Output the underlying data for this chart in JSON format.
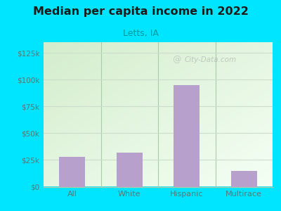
{
  "title": "Median per capita income in 2022",
  "subtitle": "Letts, IA",
  "categories": [
    "All",
    "White",
    "Hispanic",
    "Multirace"
  ],
  "values": [
    28000,
    32000,
    95000,
    15000
  ],
  "bar_color": "#b8a0cc",
  "title_color": "#1a1a1a",
  "subtitle_color": "#00999a",
  "background_color": "#00e5ff",
  "ytick_label_color": "#557777",
  "xtick_label_color": "#557777",
  "yticks": [
    0,
    25000,
    50000,
    75000,
    100000,
    125000
  ],
  "ytick_labels": [
    "$0",
    "$25k",
    "$50k",
    "$75k",
    "$100k",
    "$125k"
  ],
  "ylim": [
    0,
    135000
  ],
  "grid_color": "#ccddcc",
  "separator_color": "#aaccaa",
  "watermark": "City-Data.com",
  "plot_bg_top_left": "#d4edcc",
  "plot_bg_bottom_right": "#f5fff5"
}
